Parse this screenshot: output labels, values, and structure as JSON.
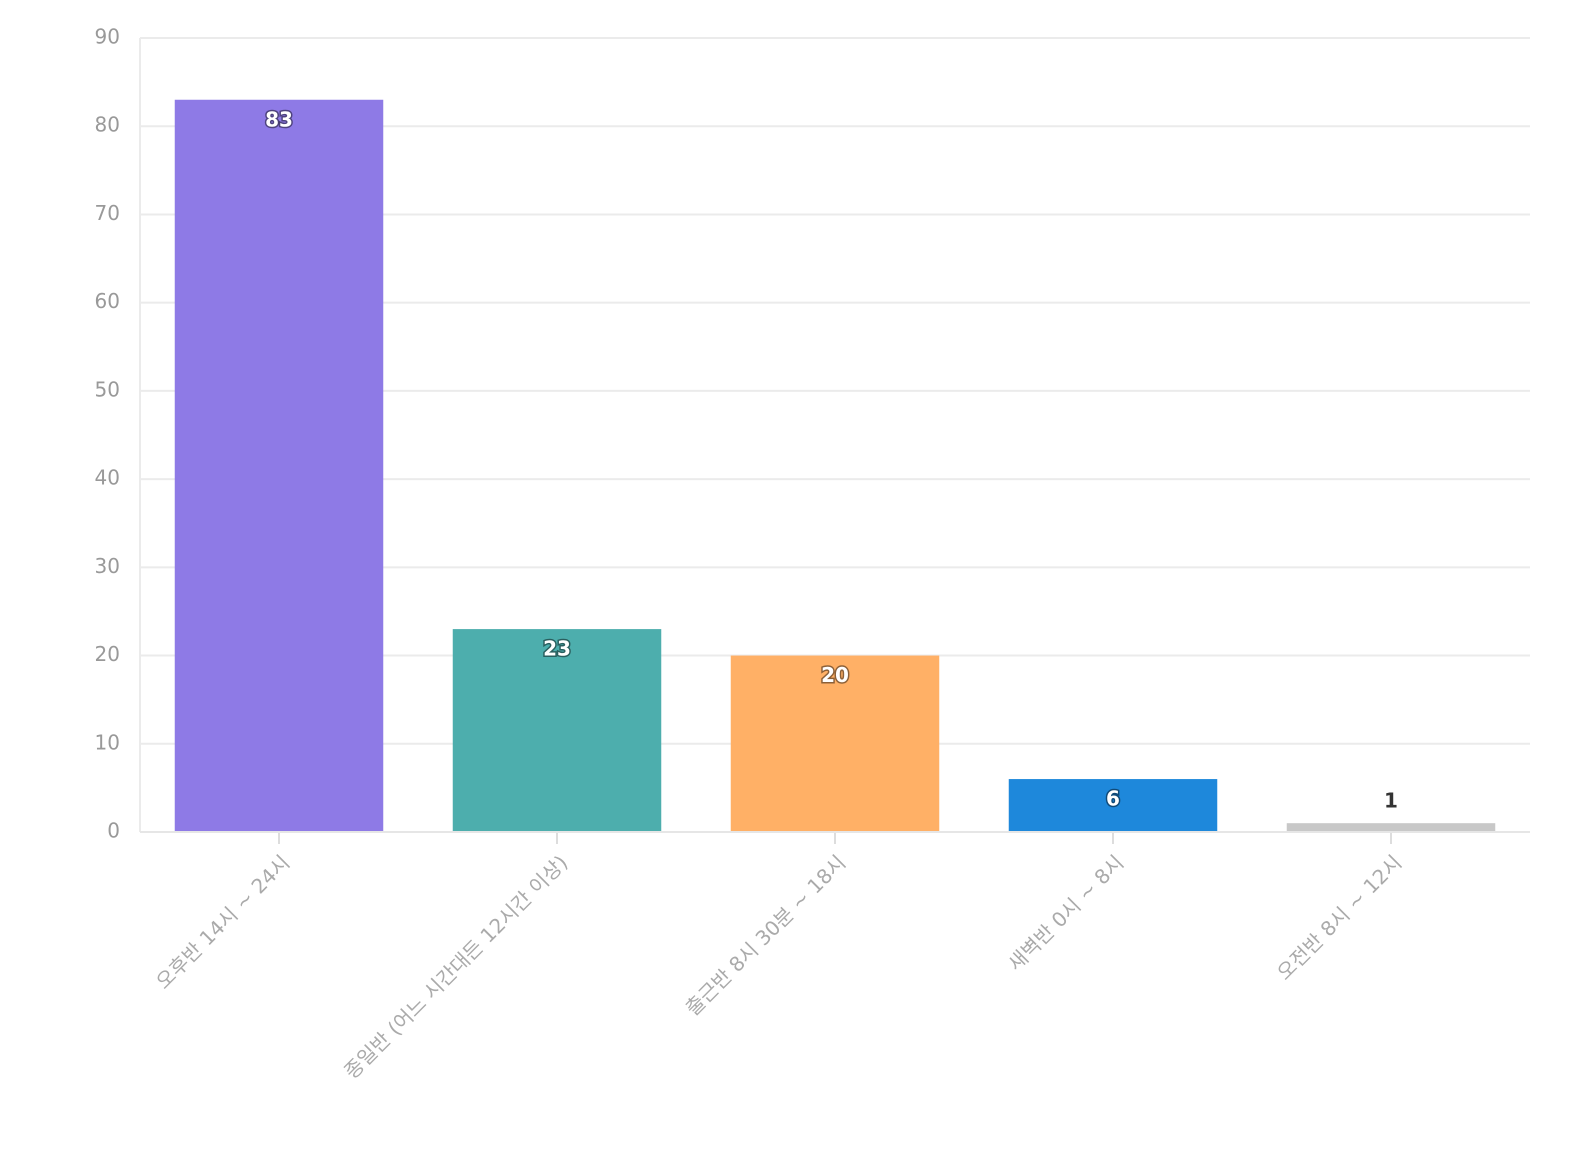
{
  "chart_data": {
    "type": "bar",
    "categories": [
      "오후반 14시 ~ 24시",
      "종일반 (어느 시간대든 12시간 이상)",
      "출근반 8시 30분 ~ 18시",
      "새벽반 0시 ~ 8시",
      "오전반 8시 ~ 12시"
    ],
    "values": [
      83,
      23,
      20,
      6,
      1
    ],
    "colors": [
      "#8e7ae6",
      "#4daead",
      "#ffb066",
      "#1e88db",
      "#c8c8c8"
    ],
    "ylim": [
      0,
      90
    ],
    "yticks": [
      0,
      10,
      20,
      30,
      40,
      50,
      60,
      70,
      80,
      90
    ],
    "grid": true
  }
}
